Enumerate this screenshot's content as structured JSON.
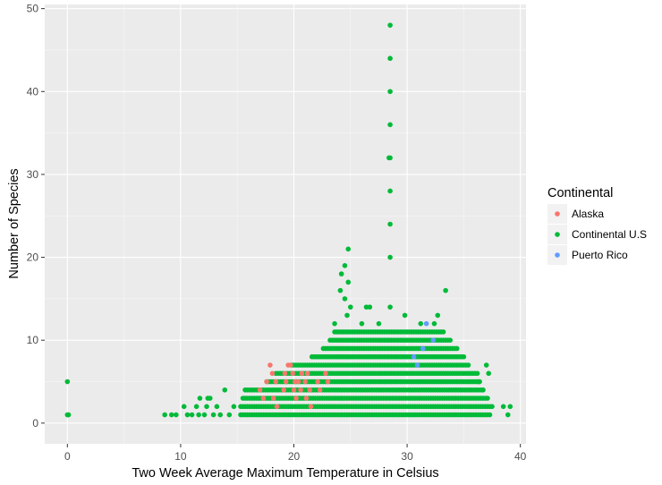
{
  "chart_data": {
    "type": "scatter",
    "title": "",
    "xlabel": "Two Week Average Maximum Temperature in Celsius",
    "ylabel": "Number of Species",
    "xlim": [
      -2,
      40.5
    ],
    "ylim": [
      -2.5,
      50.5
    ],
    "x_ticks": [
      0,
      10,
      20,
      30,
      40
    ],
    "y_ticks": [
      0,
      10,
      20,
      30,
      40,
      50
    ],
    "grid": true,
    "legend": {
      "title": "Continental",
      "position": "right"
    },
    "series": [
      {
        "name": "Alaska",
        "color": "#F8766D",
        "points": [
          [
            17.0,
            4
          ],
          [
            17.3,
            3
          ],
          [
            17.6,
            5
          ],
          [
            17.9,
            7
          ],
          [
            18.1,
            6
          ],
          [
            18.2,
            3
          ],
          [
            18.4,
            5
          ],
          [
            18.5,
            2
          ],
          [
            19.1,
            4
          ],
          [
            19.2,
            6
          ],
          [
            19.3,
            5
          ],
          [
            19.5,
            7
          ],
          [
            19.7,
            7
          ],
          [
            19.9,
            6
          ],
          [
            20.0,
            4
          ],
          [
            20.1,
            5
          ],
          [
            20.2,
            3
          ],
          [
            20.4,
            5
          ],
          [
            20.6,
            4
          ],
          [
            20.7,
            6
          ],
          [
            21.0,
            5
          ],
          [
            21.1,
            3
          ],
          [
            21.2,
            6
          ],
          [
            21.4,
            4
          ],
          [
            21.5,
            2
          ],
          [
            22.1,
            5
          ],
          [
            22.3,
            4
          ],
          [
            22.8,
            6
          ],
          [
            23.0,
            5
          ]
        ]
      },
      {
        "name": "Continental U.S",
        "color": "#00BA38",
        "points": [
          [
            0.0,
            5
          ],
          [
            0.0,
            1
          ],
          [
            8.6,
            1
          ],
          [
            9.2,
            1
          ],
          [
            9.6,
            1
          ],
          [
            10.3,
            2
          ],
          [
            10.6,
            1
          ],
          [
            11.0,
            1
          ],
          [
            11.4,
            2
          ],
          [
            11.6,
            1
          ],
          [
            11.7,
            3
          ],
          [
            12.1,
            1
          ],
          [
            12.3,
            2
          ],
          [
            12.4,
            3
          ],
          [
            12.6,
            3
          ],
          [
            12.9,
            1
          ],
          [
            13.2,
            2
          ],
          [
            13.5,
            1
          ],
          [
            13.9,
            4
          ],
          [
            14.3,
            1
          ],
          [
            14.7,
            2
          ],
          [
            28.5,
            48
          ],
          [
            28.5,
            44
          ],
          [
            28.5,
            40
          ],
          [
            28.5,
            36
          ],
          [
            28.5,
            32
          ],
          [
            28.4,
            32
          ],
          [
            28.5,
            28
          ],
          [
            28.5,
            24
          ],
          [
            28.5,
            20
          ],
          [
            24.8,
            21
          ],
          [
            24.5,
            19
          ],
          [
            24.2,
            18
          ],
          [
            24.8,
            17
          ],
          [
            24.1,
            16
          ],
          [
            24.5,
            15
          ],
          [
            25.0,
            14
          ],
          [
            24.7,
            13
          ],
          [
            26.4,
            14
          ],
          [
            26.7,
            14
          ],
          [
            28.5,
            14
          ],
          [
            32.7,
            13
          ],
          [
            33.4,
            16
          ],
          [
            23.6,
            12
          ],
          [
            26.0,
            12
          ],
          [
            27.5,
            12
          ],
          [
            31.2,
            12
          ],
          [
            32.4,
            12
          ],
          [
            29.8,
            13
          ],
          [
            38.5,
            2
          ],
          [
            38.9,
            1
          ],
          [
            39.1,
            2
          ],
          [
            36.3,
            5
          ],
          [
            36.7,
            4
          ],
          [
            37.0,
            7
          ],
          [
            37.2,
            6
          ],
          [
            0.1,
            1
          ]
        ],
        "bands": [
          {
            "y": 1,
            "x": [
              15.3,
              37.4
            ]
          },
          {
            "y": 2,
            "x": [
              15.3,
              37.6
            ]
          },
          {
            "y": 3,
            "x": [
              15.5,
              37.2
            ]
          },
          {
            "y": 4,
            "x": [
              15.7,
              36.8
            ]
          },
          {
            "y": 5,
            "x": [
              17.6,
              36.5
            ]
          },
          {
            "y": 6,
            "x": [
              18.4,
              36.2
            ]
          },
          {
            "y": 7,
            "x": [
              19.8,
              35.4
            ]
          },
          {
            "y": 8,
            "x": [
              21.6,
              35.0
            ]
          },
          {
            "y": 9,
            "x": [
              22.6,
              34.4
            ]
          },
          {
            "y": 10,
            "x": [
              23.2,
              33.8
            ]
          },
          {
            "y": 11,
            "x": [
              23.6,
              33.3
            ]
          }
        ]
      },
      {
        "name": "Puerto Rico",
        "color": "#619CFF",
        "points": [
          [
            30.6,
            8
          ],
          [
            30.9,
            7
          ],
          [
            31.4,
            9
          ],
          [
            31.7,
            12
          ],
          [
            32.3,
            10
          ]
        ]
      }
    ]
  }
}
